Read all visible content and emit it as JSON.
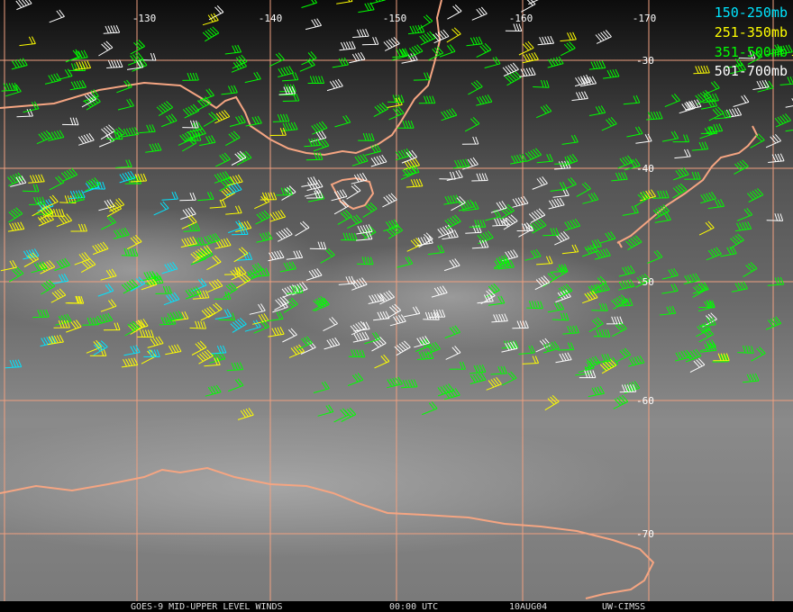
{
  "map": {
    "longitude_labels": [
      "-130",
      "-140",
      "-150",
      "-160",
      "-170"
    ],
    "latitude_labels": [
      "-30",
      "-40",
      "-50",
      "-60",
      "-70"
    ],
    "legend": [
      {
        "label": "150-250mb",
        "color": "#00e5ff"
      },
      {
        "label": "251-350mb",
        "color": "#ffff00"
      },
      {
        "label": "351-500mb",
        "color": "#00ff00"
      },
      {
        "label": "501-700mb",
        "color": "#ffffff"
      }
    ],
    "footer": [
      "GOES-9 MID-UPPER LEVEL WINDS",
      "00:00 UTC",
      "10AUG04",
      "UW-CIMSS"
    ]
  }
}
